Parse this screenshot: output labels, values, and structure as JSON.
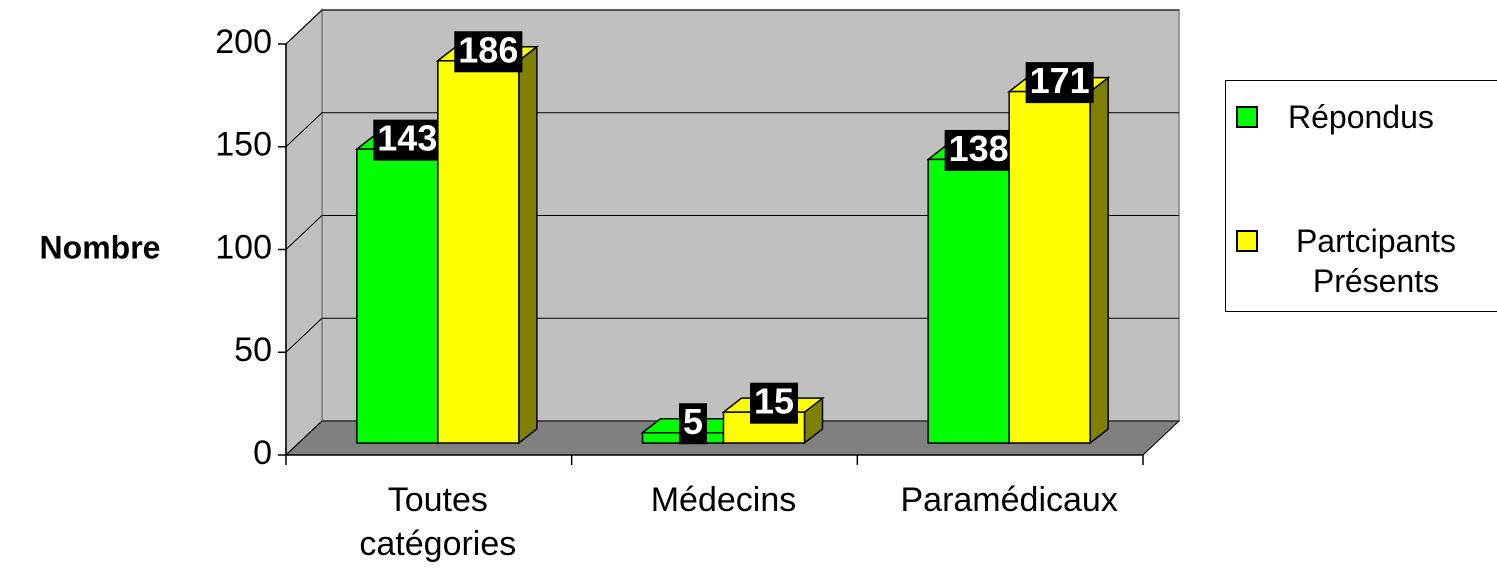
{
  "chart_data": {
    "type": "bar3d",
    "ylabel": "Nombre",
    "categories": [
      "Toutes catégories",
      "Médecins",
      "Paramédicaux"
    ],
    "series": [
      {
        "name": "Répondus",
        "color": "#00ff00",
        "side_color": "#008000",
        "values": [
          143,
          5,
          138
        ]
      },
      {
        "name": "Partcipants Présents",
        "color": "#ffff00",
        "side_color": "#808000",
        "values": [
          186,
          15,
          171
        ]
      }
    ],
    "ylim": [
      0,
      200
    ],
    "yticks": [
      0,
      50,
      100,
      150,
      200
    ],
    "grid": true,
    "legend": "right"
  }
}
